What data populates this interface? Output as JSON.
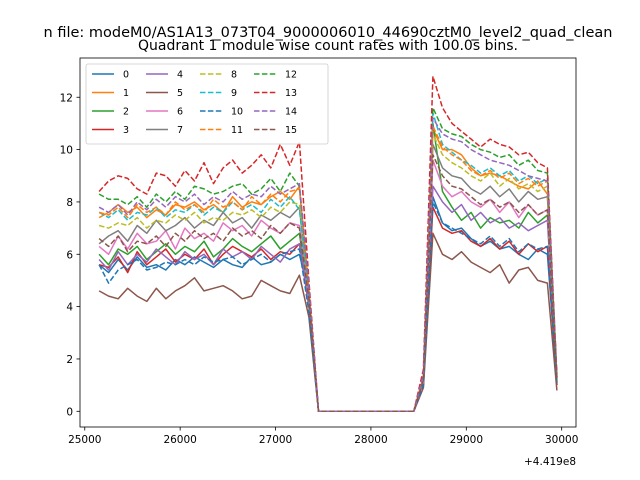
{
  "chart_data": {
    "type": "line",
    "suptitle": "n file: modeM0/AS1A13_073T04_9000006010_44690cztM0_level2_quad_clean",
    "title": "Quadrant 1 module wise count rates with 100.0s bins.",
    "xlabel": "",
    "ylabel": "",
    "x_offset_label": "+4.419e8",
    "xlim": [
      24950,
      30150
    ],
    "ylim": [
      -0.6,
      13.5
    ],
    "xticks": [
      25000,
      26000,
      27000,
      28000,
      29000,
      30000
    ],
    "yticks": [
      0,
      2,
      4,
      6,
      8,
      10,
      12
    ],
    "grid": false,
    "legend_position": "top-left",
    "x": [
      25150,
      25250,
      25350,
      25450,
      25550,
      25650,
      25750,
      25850,
      25950,
      26050,
      26150,
      26250,
      26350,
      26450,
      26550,
      26650,
      26750,
      26850,
      26950,
      27050,
      27150,
      27250,
      27350,
      27450,
      27550,
      27650,
      27750,
      27850,
      27950,
      28050,
      28150,
      28250,
      28350,
      28450,
      28550,
      28650,
      28750,
      28850,
      28950,
      29050,
      29150,
      29250,
      29350,
      29450,
      29550,
      29650,
      29750,
      29850,
      29950
    ],
    "series": [
      {
        "name": "0",
        "color": "#1f77b4",
        "dashed": false,
        "values": [
          5.6,
          5.3,
          5.8,
          5.4,
          5.9,
          5.5,
          5.6,
          5.4,
          5.8,
          5.6,
          5.9,
          5.7,
          5.5,
          5.8,
          5.6,
          5.5,
          5.9,
          5.6,
          5.7,
          6.0,
          5.8,
          6.0,
          4.5,
          0,
          0,
          0,
          0,
          0,
          0,
          0,
          0,
          0,
          0,
          0,
          1.0,
          8.2,
          7.2,
          6.9,
          7.0,
          6.6,
          6.3,
          6.5,
          6.2,
          6.3,
          6.0,
          5.8,
          6.2,
          6.0,
          1.2
        ]
      },
      {
        "name": "1",
        "color": "#ff7f0e",
        "dashed": false,
        "values": [
          7.4,
          7.6,
          7.9,
          7.6,
          7.8,
          7.4,
          7.7,
          7.5,
          7.9,
          7.8,
          8.0,
          7.7,
          7.9,
          7.6,
          8.2,
          7.8,
          8.0,
          7.9,
          8.2,
          8.4,
          8.1,
          8.6,
          4.6,
          0,
          0,
          0,
          0,
          0,
          0,
          0,
          0,
          0,
          0,
          0,
          1.3,
          10.8,
          10.0,
          10.0,
          9.8,
          9.3,
          9.0,
          9.1,
          9.0,
          8.8,
          8.6,
          8.5,
          8.8,
          8.3,
          1.2
        ]
      },
      {
        "name": "2",
        "color": "#2ca02c",
        "dashed": false,
        "values": [
          6.0,
          5.6,
          6.2,
          6.0,
          6.3,
          5.8,
          6.1,
          6.4,
          6.0,
          6.3,
          6.1,
          6.5,
          5.9,
          6.2,
          6.6,
          6.3,
          6.1,
          6.4,
          6.7,
          6.2,
          6.5,
          6.8,
          4.2,
          0,
          0,
          0,
          0,
          0,
          0,
          0,
          0,
          0,
          0,
          0,
          1.1,
          11.0,
          8.4,
          7.8,
          7.3,
          7.6,
          7.0,
          7.4,
          7.2,
          7.3,
          7.0,
          7.6,
          7.2,
          7.5,
          1.0
        ]
      },
      {
        "name": "3",
        "color": "#d62728",
        "dashed": false,
        "values": [
          5.6,
          5.5,
          5.9,
          5.3,
          6.1,
          5.6,
          5.9,
          6.2,
          5.7,
          6.0,
          5.8,
          6.2,
          5.6,
          6.0,
          6.3,
          6.1,
          5.9,
          6.2,
          5.8,
          6.1,
          6.0,
          6.4,
          4.0,
          0,
          0,
          0,
          0,
          0,
          0,
          0,
          0,
          0,
          0,
          0,
          1.0,
          7.8,
          7.0,
          6.8,
          6.9,
          6.5,
          6.3,
          6.6,
          6.2,
          6.5,
          6.0,
          6.4,
          6.1,
          6.3,
          1.0
        ]
      },
      {
        "name": "4",
        "color": "#9467bd",
        "dashed": false,
        "values": [
          5.8,
          5.4,
          6.1,
          5.6,
          6.0,
          5.7,
          6.2,
          5.9,
          5.6,
          6.1,
          5.8,
          6.0,
          5.6,
          6.2,
          5.9,
          6.1,
          5.8,
          6.3,
          6.0,
          5.7,
          6.2,
          6.4,
          4.1,
          0,
          0,
          0,
          0,
          0,
          0,
          0,
          0,
          0,
          0,
          0,
          1.1,
          8.6,
          8.0,
          7.6,
          7.9,
          7.3,
          7.6,
          7.2,
          7.4,
          7.0,
          7.2,
          6.9,
          7.1,
          7.3,
          1.1
        ]
      },
      {
        "name": "5",
        "color": "#8c564b",
        "dashed": false,
        "values": [
          4.6,
          4.4,
          4.3,
          4.7,
          4.4,
          4.2,
          4.7,
          4.3,
          4.6,
          4.8,
          5.1,
          4.6,
          4.7,
          4.8,
          4.6,
          4.3,
          4.4,
          5.0,
          4.8,
          4.6,
          4.5,
          5.2,
          3.6,
          0,
          0,
          0,
          0,
          0,
          0,
          0,
          0,
          0,
          0,
          0,
          0.9,
          6.8,
          6.0,
          5.8,
          6.1,
          5.7,
          5.5,
          5.3,
          5.6,
          4.9,
          5.4,
          5.5,
          5.0,
          4.9,
          0.8
        ]
      },
      {
        "name": "6",
        "color": "#e377c2",
        "dashed": false,
        "values": [
          6.3,
          6.0,
          6.7,
          6.2,
          6.8,
          6.4,
          6.5,
          6.9,
          6.2,
          7.0,
          6.6,
          6.8,
          6.5,
          7.2,
          6.9,
          7.1,
          6.7,
          7.3,
          7.0,
          6.8,
          7.2,
          7.1,
          4.3,
          0,
          0,
          0,
          0,
          0,
          0,
          0,
          0,
          0,
          0,
          0,
          1.1,
          9.6,
          8.6,
          8.2,
          8.4,
          8.0,
          7.8,
          8.1,
          7.6,
          8.0,
          7.4,
          7.9,
          7.5,
          7.7,
          1.1
        ]
      },
      {
        "name": "7",
        "color": "#7f7f7f",
        "dashed": false,
        "values": [
          6.4,
          6.7,
          6.9,
          6.5,
          7.1,
          6.8,
          7.3,
          6.9,
          7.1,
          7.4,
          7.0,
          7.3,
          7.1,
          7.6,
          7.2,
          7.4,
          7.0,
          7.5,
          7.3,
          7.6,
          7.4,
          7.8,
          4.4,
          0,
          0,
          0,
          0,
          0,
          0,
          0,
          0,
          0,
          0,
          0,
          1.2,
          10.2,
          9.3,
          9.0,
          8.9,
          8.5,
          8.3,
          8.6,
          8.2,
          8.5,
          8.0,
          8.4,
          8.1,
          8.2,
          1.2
        ]
      },
      {
        "name": "8",
        "color": "#bcbd22",
        "dashed": true,
        "values": [
          7.1,
          7.0,
          7.2,
          7.1,
          7.4,
          7.0,
          7.3,
          7.2,
          7.5,
          7.3,
          7.6,
          7.2,
          7.4,
          7.3,
          7.6,
          7.5,
          7.7,
          7.4,
          7.8,
          7.6,
          8.0,
          7.9,
          4.5,
          0,
          0,
          0,
          0,
          0,
          0,
          0,
          0,
          0,
          0,
          0,
          1.3,
          10.6,
          9.8,
          9.5,
          9.3,
          9.0,
          8.8,
          9.1,
          8.6,
          8.9,
          8.5,
          8.7,
          8.4,
          8.6,
          1.2
        ]
      },
      {
        "name": "9",
        "color": "#17becf",
        "dashed": true,
        "values": [
          7.6,
          7.4,
          7.7,
          7.3,
          7.6,
          7.5,
          7.8,
          7.4,
          7.7,
          7.6,
          7.9,
          7.5,
          7.8,
          7.6,
          8.0,
          7.7,
          7.9,
          7.6,
          8.1,
          7.8,
          8.2,
          7.7,
          4.5,
          0,
          0,
          0,
          0,
          0,
          0,
          0,
          0,
          0,
          0,
          0,
          1.3,
          11.4,
          10.2,
          9.9,
          9.6,
          9.4,
          9.1,
          9.3,
          9.0,
          9.2,
          8.8,
          9.0,
          8.7,
          8.9,
          1.3
        ]
      },
      {
        "name": "10",
        "color": "#1f77b4",
        "dashed": true,
        "values": [
          5.6,
          4.9,
          5.4,
          5.6,
          5.8,
          5.4,
          5.5,
          5.7,
          5.6,
          5.8,
          5.6,
          5.9,
          5.7,
          5.8,
          5.9,
          5.6,
          5.8,
          6.0,
          5.7,
          6.0,
          6.1,
          6.2,
          3.8,
          0,
          0,
          0,
          0,
          0,
          0,
          0,
          0,
          0,
          0,
          0,
          1.0,
          8.0,
          7.2,
          7.0,
          6.8,
          6.6,
          6.4,
          6.7,
          6.3,
          6.6,
          6.1,
          6.4,
          6.2,
          6.3,
          1.0
        ]
      },
      {
        "name": "11",
        "color": "#ff7f0e",
        "dashed": true,
        "values": [
          7.6,
          7.5,
          7.8,
          7.4,
          7.9,
          7.6,
          7.8,
          7.5,
          8.0,
          7.7,
          7.9,
          7.6,
          8.1,
          7.8,
          8.0,
          7.7,
          8.2,
          7.9,
          8.3,
          8.0,
          8.4,
          8.5,
          4.6,
          0,
          0,
          0,
          0,
          0,
          0,
          0,
          0,
          0,
          0,
          0,
          1.3,
          10.9,
          10.1,
          9.8,
          9.6,
          9.2,
          9.0,
          9.2,
          8.9,
          9.1,
          8.7,
          8.9,
          8.6,
          8.8,
          1.3
        ]
      },
      {
        "name": "12",
        "color": "#2ca02c",
        "dashed": true,
        "values": [
          8.3,
          8.1,
          8.1,
          7.9,
          8.2,
          7.8,
          8.3,
          8.0,
          8.4,
          8.1,
          8.6,
          8.5,
          8.3,
          8.4,
          8.6,
          8.7,
          8.3,
          8.5,
          8.9,
          8.4,
          9.1,
          8.6,
          4.7,
          0,
          0,
          0,
          0,
          0,
          0,
          0,
          0,
          0,
          0,
          0,
          1.4,
          11.6,
          10.8,
          10.6,
          10.5,
          10.2,
          10.0,
          9.9,
          9.7,
          9.8,
          9.4,
          9.6,
          9.2,
          9.1,
          1.3
        ]
      },
      {
        "name": "13",
        "color": "#d62728",
        "dashed": true,
        "values": [
          8.4,
          8.8,
          9.0,
          8.9,
          8.5,
          8.3,
          9.1,
          9.0,
          8.6,
          9.2,
          8.8,
          9.5,
          8.7,
          9.3,
          9.6,
          9.1,
          9.4,
          9.8,
          9.3,
          10.2,
          9.4,
          10.3,
          5.0,
          0,
          0,
          0,
          0,
          0,
          0,
          0,
          0,
          0,
          0,
          0,
          1.6,
          12.8,
          11.6,
          11.0,
          10.7,
          10.4,
          10.1,
          10.4,
          10.2,
          10.1,
          9.8,
          9.9,
          9.5,
          9.3,
          1.4
        ]
      },
      {
        "name": "14",
        "color": "#9467bd",
        "dashed": true,
        "values": [
          7.8,
          7.6,
          7.9,
          7.5,
          8.0,
          7.7,
          8.1,
          7.8,
          8.2,
          8.0,
          8.3,
          7.9,
          8.2,
          8.0,
          8.4,
          8.1,
          8.3,
          8.2,
          8.6,
          8.3,
          8.5,
          8.7,
          4.8,
          0,
          0,
          0,
          0,
          0,
          0,
          0,
          0,
          0,
          0,
          0,
          1.4,
          11.2,
          10.6,
          10.4,
          10.3,
          10.0,
          9.8,
          9.6,
          9.5,
          9.4,
          9.2,
          9.0,
          8.9,
          8.8,
          1.3
        ]
      },
      {
        "name": "15",
        "color": "#8c564b",
        "dashed": true,
        "values": [
          6.6,
          6.3,
          6.7,
          6.1,
          6.5,
          6.4,
          6.7,
          6.3,
          6.8,
          6.5,
          6.9,
          6.6,
          6.8,
          6.5,
          7.0,
          6.7,
          6.9,
          6.6,
          7.1,
          6.8,
          7.2,
          7.0,
          4.3,
          0,
          0,
          0,
          0,
          0,
          0,
          0,
          0,
          0,
          0,
          0,
          1.2,
          9.8,
          9.0,
          8.6,
          8.5,
          8.2,
          7.9,
          8.1,
          7.8,
          8.0,
          7.6,
          7.9,
          7.5,
          7.7,
          1.1
        ]
      }
    ]
  }
}
